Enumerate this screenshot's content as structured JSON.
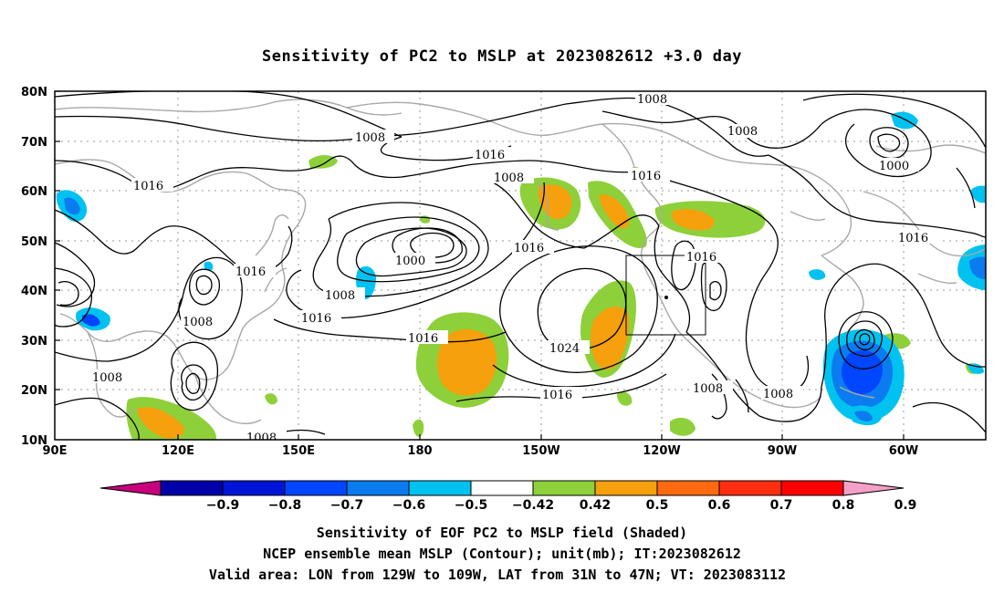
{
  "title": "Sensitivity of PC2 to MSLP at 2023082612 +3.0 day",
  "map": {
    "lat_ticks": [
      "80N",
      "70N",
      "60N",
      "50N",
      "40N",
      "30N",
      "20N",
      "10N"
    ],
    "lon_ticks": [
      "90E",
      "120E",
      "150E",
      "180",
      "150W",
      "120W",
      "90W",
      "60W"
    ],
    "lon_range": [
      "90E",
      "40W"
    ],
    "lat_range": [
      "10N",
      "80N"
    ],
    "grid": "dotted",
    "valid_box": {
      "lon_from": "129W",
      "lon_to": "109W",
      "lat_from": "31N",
      "lat_to": "47N"
    },
    "contour_labels": [
      "1008",
      "1008",
      "1016",
      "1008",
      "1016",
      "1008",
      "1016",
      "1000",
      "1016",
      "1016",
      "1000",
      "1008",
      "1016",
      "1016",
      "1008",
      "1016",
      "1024",
      "1016",
      "1008",
      "1008",
      "1008",
      "1008"
    ]
  },
  "colorbar": {
    "labels": [
      "-0.9",
      "-0.8",
      "-0.7",
      "-0.6",
      "-0.5",
      "-0.42",
      "0.42",
      "0.5",
      "0.6",
      "0.7",
      "0.8",
      "0.9"
    ],
    "colors": [
      "#c8007e",
      "#0000a8",
      "#0014d8",
      "#0046ff",
      "#0a7cf0",
      "#00c2f0",
      "#ffffff",
      "#8ed03a",
      "#f5a00c",
      "#ff6a10",
      "#ff2e10",
      "#ff0000",
      "#f4a0c8"
    ]
  },
  "caption": {
    "line1": "Sensitivity of EOF PC2 to MSLP field (Shaded)",
    "line2": "NCEP ensemble mean MSLP (Contour); unit(mb); IT:2023082612",
    "line3": "Valid area: LON from 129W to 109W, LAT from 31N to 47N; VT: 2023083112"
  }
}
